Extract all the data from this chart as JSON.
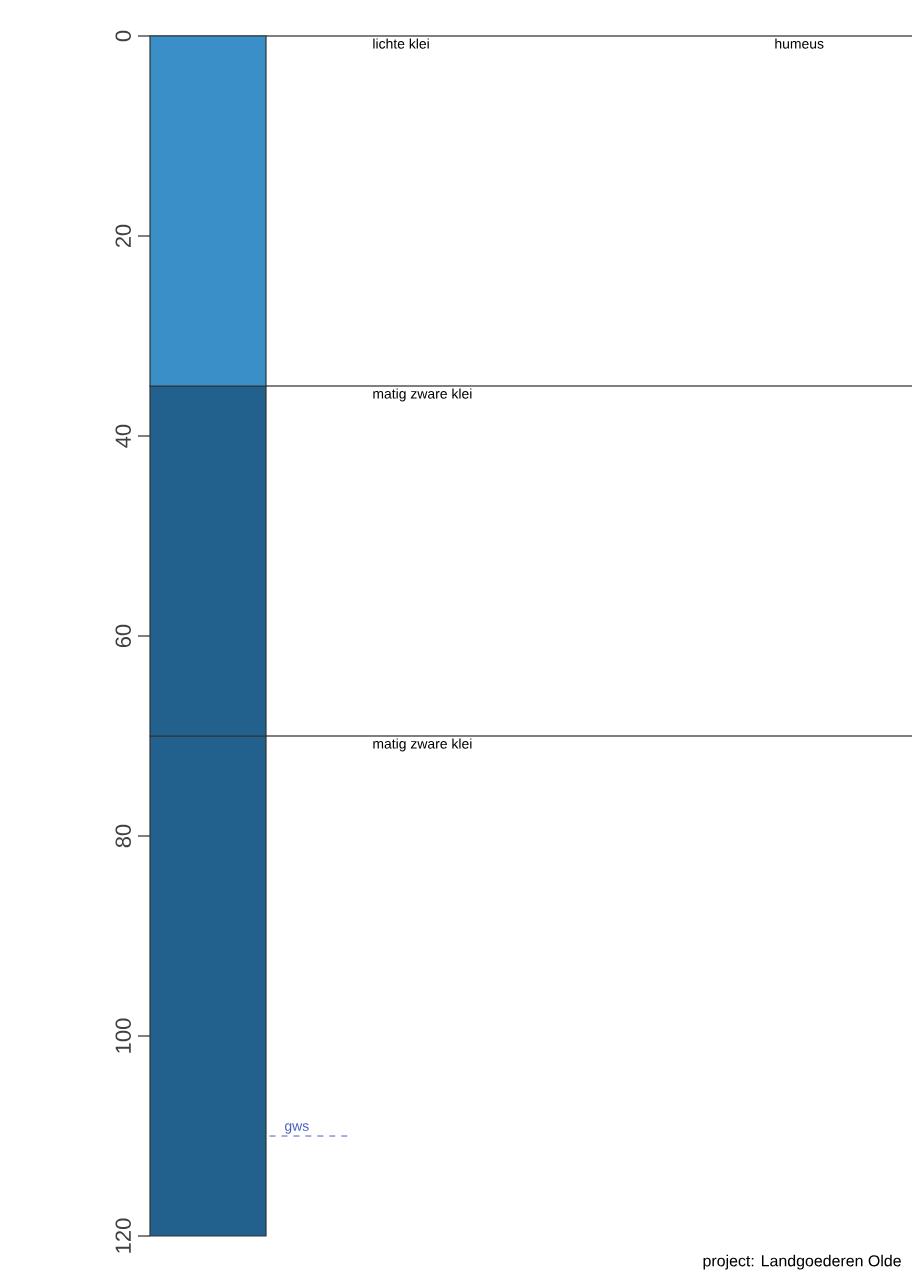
{
  "chart_data": {
    "type": "bar",
    "stacked": true,
    "categories": [
      null
    ],
    "series": [
      {
        "color": "#3a8fc8",
        "values": [
          35
        ]
      },
      {
        "color": "#22608e",
        "values": [
          35
        ]
      },
      {
        "color": "#22608e",
        "values": [
          50
        ]
      }
    ],
    "ylim": [
      120,
      0
    ],
    "yticks": [
      0,
      20,
      40,
      60,
      80,
      100,
      120
    ],
    "ref_lines": [
      {
        "axis": "y",
        "value": 0,
        "label": "lichte klei",
        "color": "#000000"
      },
      {
        "axis": "y",
        "value": 35,
        "label": "matig zware klei",
        "color": "#000000"
      },
      {
        "axis": "y",
        "value": 70,
        "label": "matig zware klei",
        "color": "#000000"
      },
      {
        "axis": "y",
        "value": 110,
        "label": "gws",
        "color": "#4a5fc0",
        "line_style": "dashed"
      }
    ],
    "annotations": [
      {
        "text": "humeus",
        "y": 0
      },
      "project:  Landgoederen Olde"
    ]
  }
}
